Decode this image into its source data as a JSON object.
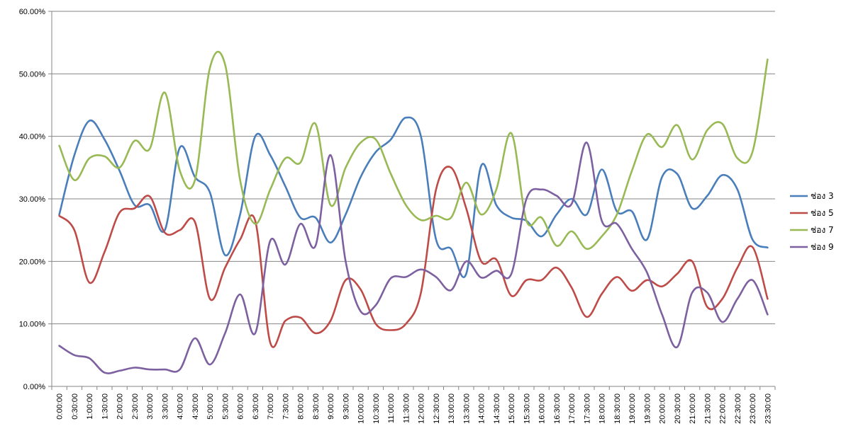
{
  "chart_data": {
    "type": "line",
    "x": [
      "0:00:00",
      "0:30:00",
      "1:00:00",
      "1:30:00",
      "2:00:00",
      "2:30:00",
      "3:00:00",
      "3:30:00",
      "4:00:00",
      "4:30:00",
      "5:00:00",
      "5:30:00",
      "6:00:00",
      "6:30:00",
      "7:00:00",
      "7:30:00",
      "8:00:00",
      "8:30:00",
      "9:00:00",
      "9:30:00",
      "10:00:00",
      "10:30:00",
      "11:00:00",
      "11:30:00",
      "12:00:00",
      "12:30:00",
      "13:00:00",
      "13:30:00",
      "14:00:00",
      "14:30:00",
      "15:00:00",
      "15:30:00",
      "16:00:00",
      "16:30:00",
      "17:00:00",
      "17:30:00",
      "18:00:00",
      "18:30:00",
      "19:00:00",
      "19:30:00",
      "20:00:00",
      "20:30:00",
      "21:00:00",
      "21:30:00",
      "22:00:00",
      "22:30:00",
      "23:00:00",
      "23:30:00"
    ],
    "ylim": [
      0,
      60
    ],
    "yticks": [
      0,
      10,
      20,
      30,
      40,
      50,
      60
    ],
    "ytick_labels": [
      "0.00%",
      "10.00%",
      "20.00%",
      "30.00%",
      "40.00%",
      "50.00%",
      "60.00%"
    ],
    "grid": true,
    "legend_position": "right",
    "title": "",
    "xlabel": "",
    "ylabel": "",
    "series": [
      {
        "name": "ช่อง 3",
        "color": "#4A7EBB",
        "values": [
          27.5,
          37.0,
          42.5,
          39.5,
          34.5,
          29.0,
          29.0,
          25.0,
          38.2,
          33.5,
          31.0,
          21.0,
          27.5,
          40.0,
          37.0,
          32.0,
          27.0,
          27.0,
          23.0,
          27.5,
          33.5,
          37.5,
          39.5,
          43.0,
          40.0,
          23.5,
          22.0,
          18.0,
          35.3,
          29.0,
          27.0,
          26.5,
          24.0,
          27.5,
          30.0,
          27.5,
          34.7,
          28.0,
          28.0,
          23.5,
          33.5,
          34.0,
          28.5,
          30.5,
          33.8,
          31.5,
          23.5,
          22.2
        ]
      },
      {
        "name": "ช่อง 5",
        "color": "#BE4B48",
        "values": [
          27.3,
          25.0,
          16.6,
          21.5,
          27.8,
          28.5,
          30.4,
          24.6,
          25.0,
          26.3,
          14.0,
          19.0,
          23.5,
          26.5,
          7.0,
          10.5,
          11.0,
          8.5,
          10.5,
          17.0,
          15.5,
          10.0,
          9.0,
          10.0,
          15.0,
          31.5,
          35.0,
          28.5,
          20.0,
          20.3,
          14.5,
          17.0,
          17.0,
          19.0,
          15.8,
          11.1,
          14.8,
          17.5,
          15.3,
          17.0,
          16.0,
          18.0,
          20.0,
          12.7,
          14.0,
          19.0,
          22.3,
          14.0
        ]
      },
      {
        "name": "ช่อง 7",
        "color": "#98B954",
        "values": [
          38.5,
          33.0,
          36.5,
          36.8,
          35.0,
          39.3,
          38.0,
          47.0,
          34.5,
          33.0,
          51.0,
          51.5,
          33.0,
          26.0,
          31.5,
          36.5,
          35.8,
          42.0,
          29.0,
          35.0,
          39.0,
          39.5,
          34.0,
          29.0,
          26.6,
          27.3,
          27.0,
          32.6,
          27.5,
          31.5,
          40.5,
          26.5,
          27.0,
          22.5,
          24.8,
          22.0,
          24.0,
          27.5,
          34.5,
          40.3,
          38.3,
          41.8,
          36.3,
          41.0,
          42.0,
          36.5,
          37.5,
          52.3
        ]
      },
      {
        "name": "ช่อง 9",
        "color": "#7D60A0",
        "values": [
          6.5,
          5.0,
          4.5,
          2.2,
          2.5,
          3.0,
          2.7,
          2.7,
          2.7,
          7.7,
          3.5,
          8.5,
          14.7,
          8.5,
          23.3,
          19.5,
          26.0,
          22.5,
          37.0,
          20.0,
          12.0,
          13.0,
          17.3,
          17.5,
          18.7,
          17.5,
          15.4,
          20.0,
          17.4,
          18.5,
          18.0,
          30.0,
          31.5,
          30.5,
          29.2,
          39.0,
          26.5,
          26.0,
          22.0,
          18.2,
          11.5,
          6.3,
          15.0,
          15.0,
          10.3,
          14.0,
          17.0,
          11.5
        ]
      }
    ]
  }
}
